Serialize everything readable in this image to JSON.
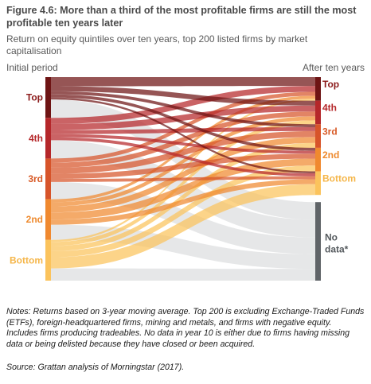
{
  "title": "Figure 4.6: More than a third of the most profitable firms are still the most profitable ten years later",
  "subtitle": "Return on equity quintiles over ten years, top 200 listed firms by market capitalisation",
  "left_heading": "Initial period",
  "right_heading": "After ten years",
  "notes": "Notes: Returns based on 3-year moving average. Top 200 is excluding Exchange-Traded Funds (ETFs), foreign-headquartered firms, mining and metals, and firms with negative equity. Includes firms producing tradeables. No data in year 10 is either due to firms having missing data or being delisted because they have closed or been acquired.",
  "source": "Source: Grattan analysis of Morningstar (2017).",
  "chart_data": {
    "type": "sankey",
    "left_nodes": [
      {
        "name": "Top",
        "value": 20,
        "color": "#6e1414",
        "label_color": "#8b1a1a"
      },
      {
        "name": "4th",
        "value": 20,
        "color": "#b5272a",
        "label_color": "#b5272a"
      },
      {
        "name": "3rd",
        "value": 20,
        "color": "#d7542a",
        "label_color": "#d85a26"
      },
      {
        "name": "2nd",
        "value": 20,
        "color": "#f0892f",
        "label_color": "#ee8a2e"
      },
      {
        "name": "Bottom",
        "value": 20,
        "color": "#fbc35c",
        "label_color": "#f5b64a"
      }
    ],
    "right_nodes": [
      {
        "name": "Top",
        "value": 12,
        "color": "#6e1414",
        "label_color": "#8b1a1a"
      },
      {
        "name": "4th",
        "value": 12,
        "color": "#b5272a",
        "label_color": "#b5272a"
      },
      {
        "name": "3rd",
        "value": 12,
        "color": "#d7542a",
        "label_color": "#d85a26"
      },
      {
        "name": "2nd",
        "value": 12,
        "color": "#f0892f",
        "label_color": "#ee8a2e"
      },
      {
        "name": "Bottom",
        "value": 12,
        "color": "#fbc35c",
        "label_color": "#f5b64a"
      },
      {
        "name": "No data*",
        "value": 40,
        "color": "#606468",
        "label_color": "#555a5e"
      }
    ],
    "flows": [
      [
        "Top",
        "Top",
        4.5
      ],
      [
        "Top",
        "4th",
        2.5
      ],
      [
        "Top",
        "3rd",
        1.5
      ],
      [
        "Top",
        "2nd",
        1.5
      ],
      [
        "Top",
        "Bottom",
        1
      ],
      [
        "Top",
        "No data*",
        9
      ],
      [
        "4th",
        "Top",
        3
      ],
      [
        "4th",
        "4th",
        3
      ],
      [
        "4th",
        "3rd",
        2
      ],
      [
        "4th",
        "2nd",
        1.5
      ],
      [
        "4th",
        "Bottom",
        1.5
      ],
      [
        "4th",
        "No data*",
        9
      ],
      [
        "3rd",
        "Top",
        2
      ],
      [
        "3rd",
        "4th",
        2.5
      ],
      [
        "3rd",
        "3rd",
        3
      ],
      [
        "3rd",
        "2nd",
        2.5
      ],
      [
        "3rd",
        "Bottom",
        1.5
      ],
      [
        "3rd",
        "No data*",
        8.5
      ],
      [
        "2nd",
        "Top",
        1.5
      ],
      [
        "2nd",
        "4th",
        2
      ],
      [
        "2nd",
        "3rd",
        3
      ],
      [
        "2nd",
        "2nd",
        3.5
      ],
      [
        "2nd",
        "Bottom",
        2.5
      ],
      [
        "2nd",
        "No data*",
        7.5
      ],
      [
        "Bottom",
        "Top",
        1
      ],
      [
        "Bottom",
        "4th",
        2
      ],
      [
        "Bottom",
        "3rd",
        2.5
      ],
      [
        "Bottom",
        "2nd",
        3
      ],
      [
        "Bottom",
        "Bottom",
        5.5
      ],
      [
        "Bottom",
        "No data*",
        6
      ]
    ],
    "no_data_flow_color": "#e3e4e6"
  }
}
